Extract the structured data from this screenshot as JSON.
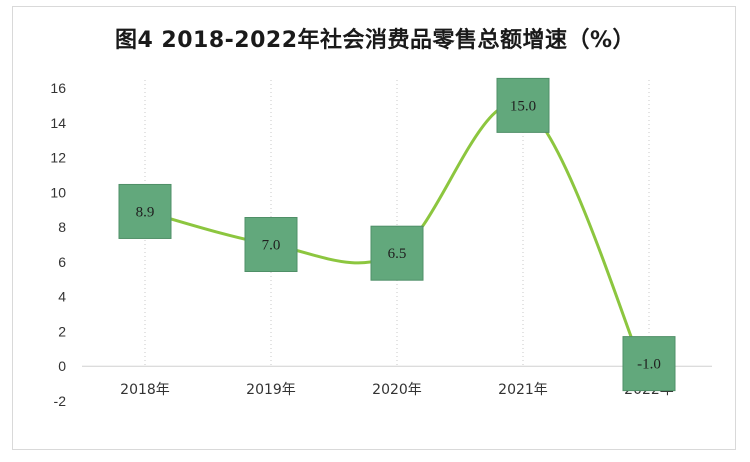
{
  "title": "图4  2018-2022年社会消费品零售总额增速（%）",
  "colors": {
    "line": "#8cc63f",
    "line_dark": "#5a8a1e",
    "box_fill": "#62a87c",
    "box_stroke": "#4f8f67",
    "grid": "#c8c8c8",
    "axis": "#d0d0d0"
  },
  "chart_data": {
    "type": "line",
    "title": "图4  2018-2022年社会消费品零售总额增速（%）",
    "categories": [
      "2018年",
      "2019年",
      "2020年",
      "2021年",
      "2022年"
    ],
    "series": [
      {
        "values": [
          8.9,
          7.0,
          6.5,
          15.0,
          -1.0
        ]
      }
    ],
    "data_labels": [
      "8.9",
      "7.0",
      "6.5",
      "15.0",
      "-1.0"
    ],
    "y_ticks": [
      "-2",
      "0",
      "2",
      "4",
      "6",
      "8",
      "10",
      "12",
      "14",
      "16"
    ],
    "ylim": [
      -2,
      16
    ],
    "xlabel": "",
    "ylabel": "",
    "grid": "vertical dotted",
    "legend": "none"
  }
}
